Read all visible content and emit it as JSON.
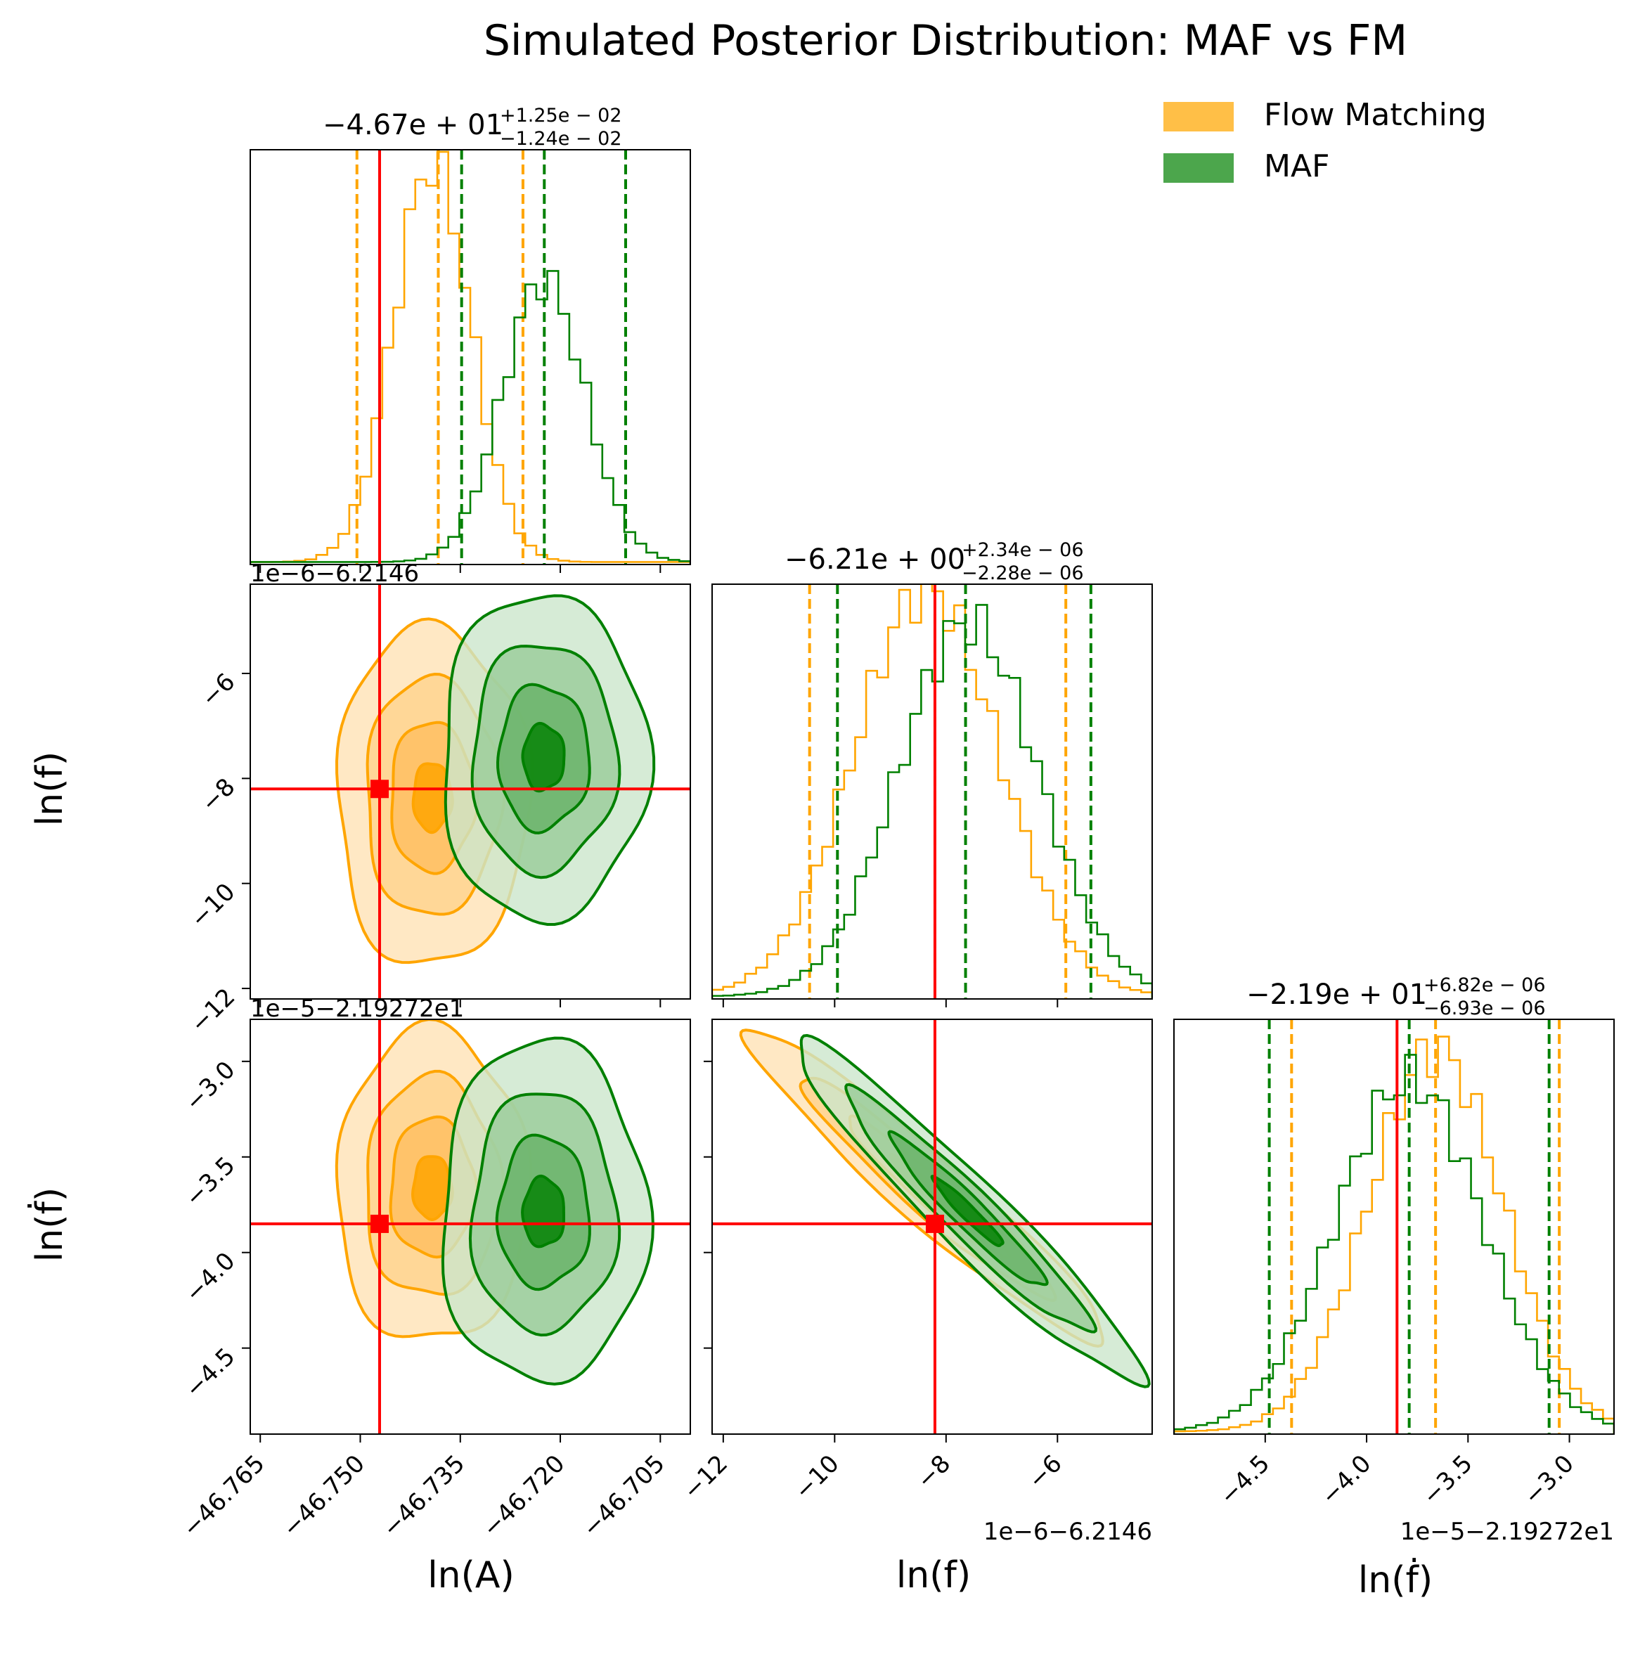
{
  "chart_data": {
    "type": "corner",
    "title": "Simulated Posterior Distribution: MAF vs FM",
    "legend": {
      "placement": "top-right",
      "entries": [
        {
          "label": "Flow Matching",
          "color": "#FFBF47"
        },
        {
          "label": "MAF",
          "color": "#4CA64C"
        }
      ]
    },
    "colors": {
      "fm": "#FFA500",
      "maf": "#008000",
      "truth": "#FF0000"
    },
    "parameters": [
      {
        "label": "ln(A)",
        "axis_range": [
          -46.7665,
          -46.7005
        ],
        "ticks": [
          -46.765,
          -46.75,
          -46.735,
          -46.72,
          -46.705
        ],
        "tick_labels": [
          "−46.765",
          "−46.750",
          "−46.735",
          "−46.720",
          "−46.705"
        ],
        "offset_text": "",
        "truth": -46.7471,
        "summary": {
          "value": "−4.67e + 01",
          "plus": "+1.25e − 02",
          "minus": "−1.24e − 02"
        },
        "quantiles": {
          "fm": [
            -46.7505,
            -46.7383,
            -46.7256
          ],
          "maf": [
            -46.7348,
            -46.7224,
            -46.7102
          ]
        }
      },
      {
        "label": "ln(f)",
        "axis_range": [
          -12.2,
          -4.3
        ],
        "ticks": [
          -12,
          -10,
          -8,
          -6
        ],
        "tick_labels": [
          "−12",
          "−10",
          "−8",
          "−6"
        ],
        "offset_text": "1e−6−6.2146",
        "truth": -8.2,
        "summary": {
          "value": "−6.21e + 00",
          "plus": "+2.34e − 06",
          "minus": "−2.28e − 06"
        },
        "quantiles": {
          "fm": [
            -10.45,
            -8.2,
            -5.85
          ],
          "maf": [
            -9.95,
            -7.65,
            -5.4
          ]
        }
      },
      {
        "label": "ln(ḟ)",
        "axis_range": [
          -4.95,
          -2.78
        ],
        "ticks": [
          -4.5,
          -4.0,
          -3.5,
          -3.0
        ],
        "tick_labels": [
          "−4.5",
          "−4.0",
          "−3.5",
          "−3.0"
        ],
        "offset_text": "1e−5−2.19272e1",
        "truth": -3.85,
        "summary": {
          "value": "−2.19e + 01",
          "plus": "+6.82e − 06",
          "minus": "−6.93e − 06"
        },
        "quantiles": {
          "fm": [
            -4.37,
            -3.66,
            -3.05
          ],
          "maf": [
            -4.48,
            -3.79,
            -3.1
          ]
        }
      }
    ],
    "series": [
      {
        "name": "Flow Matching",
        "mean": [
          -46.7392,
          -8.35,
          -3.66
        ],
        "std": [
          0.0058,
          1.3,
          0.33
        ],
        "hist_ymax_scale": [
          0.96,
          0.98,
          0.92
        ]
      },
      {
        "name": "MAF",
        "mean": [
          -46.7225,
          -7.6,
          -3.79
        ],
        "std": [
          0.0062,
          1.25,
          0.36
        ],
        "hist_ymax_scale": [
          0.68,
          0.9,
          0.85
        ]
      }
    ],
    "correlation": {
      "ff_fdot": -0.96
    }
  }
}
